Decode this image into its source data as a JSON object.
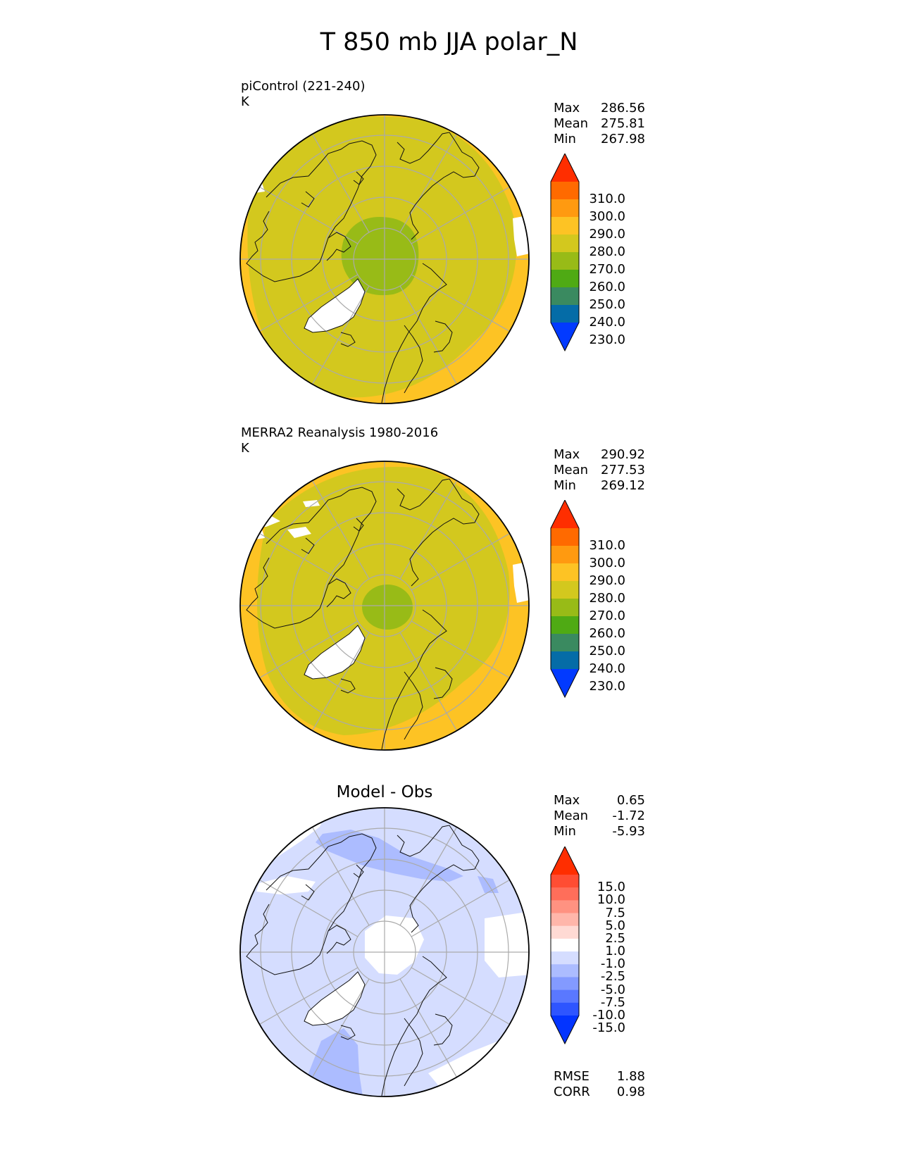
{
  "title": "T 850 mb JJA polar_N",
  "panels": [
    {
      "id": "test",
      "label_line1": "piControl (221-240)",
      "label_line2": "K",
      "stats": [
        {
          "name": "Max",
          "value": "286.56"
        },
        {
          "name": "Mean",
          "value": "275.81"
        },
        {
          "name": "Min",
          "value": "267.98"
        }
      ],
      "colorbar": {
        "ticks": [
          "310.0",
          "300.0",
          "290.0",
          "280.0",
          "270.0",
          "260.0",
          "250.0",
          "240.0",
          "230.0"
        ],
        "colors": [
          "#ff2e00",
          "#ff6a00",
          "#ff9a10",
          "#fdc324",
          "#d3c81e",
          "#98bb17",
          "#4faa14",
          "#3a8a60",
          "#056ca7",
          "#023aff"
        ]
      },
      "map_colors": {
        "outer": "#fdc324",
        "main": "#d3c81e",
        "inner": "#98bb17",
        "missing": "#ffffff"
      }
    },
    {
      "id": "reference",
      "label_line1": "MERRA2 Reanalysis 1980-2016",
      "label_line2": "K",
      "stats": [
        {
          "name": "Max",
          "value": "290.92"
        },
        {
          "name": "Mean",
          "value": "277.53"
        },
        {
          "name": "Min",
          "value": "269.12"
        }
      ],
      "colorbar": {
        "ticks": [
          "310.0",
          "300.0",
          "290.0",
          "280.0",
          "270.0",
          "260.0",
          "250.0",
          "240.0",
          "230.0"
        ],
        "colors": [
          "#ff2e00",
          "#ff6a00",
          "#ff9a10",
          "#fdc324",
          "#d3c81e",
          "#98bb17",
          "#4faa14",
          "#3a8a60",
          "#056ca7",
          "#023aff"
        ]
      },
      "map_colors": {
        "outer": "#fdc324",
        "main": "#d3c81e",
        "inner": "#98bb17",
        "missing": "#ffffff"
      }
    },
    {
      "id": "difference",
      "title": "Model - Obs",
      "stats": [
        {
          "name": "Max",
          "value": "0.65"
        },
        {
          "name": "Mean",
          "value": "-1.72"
        },
        {
          "name": "Min",
          "value": "-5.93"
        }
      ],
      "colorbar": {
        "ticks": [
          "15.0",
          "10.0",
          "7.5",
          "5.0",
          "2.5",
          "1.0",
          "-1.0",
          "-2.5",
          "-5.0",
          "-7.5",
          "-10.0",
          "-15.0"
        ],
        "colors": [
          "#ff2e00",
          "#ff4d33",
          "#ff6e5a",
          "#ff9281",
          "#ffb6aa",
          "#ffdad4",
          "#ffffff",
          "#d5ddff",
          "#acbcff",
          "#839aff",
          "#5a78ff",
          "#2e55ff",
          "#0334ff"
        ]
      },
      "map_colors": {
        "main": "#d5ddff",
        "darker": "#acbcff",
        "missing": "#ffffff"
      },
      "metrics": [
        {
          "name": "RMSE",
          "value": "1.88"
        },
        {
          "name": "CORR",
          "value": "0.98"
        }
      ]
    }
  ]
}
